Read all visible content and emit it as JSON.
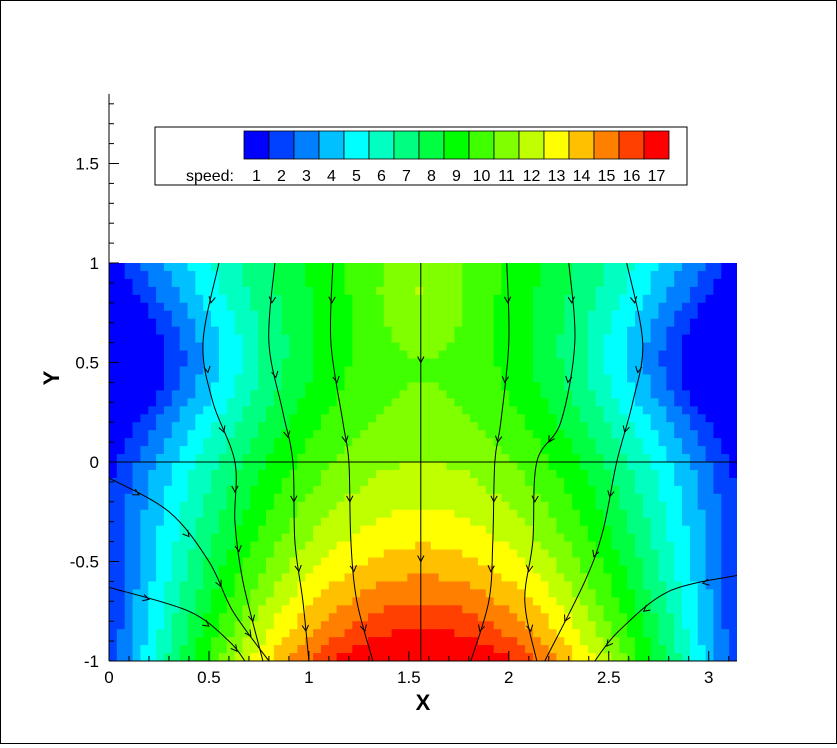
{
  "chart_data": {
    "type": "contour",
    "xlabel": "X",
    "ylabel": "Y",
    "xlim": [
      0,
      3.1416
    ],
    "ylim_plot": [
      -1,
      1
    ],
    "y_axis_extent": [
      -1,
      1.85
    ],
    "xticks": [
      {
        "value": 0,
        "label": "0"
      },
      {
        "value": 0.5,
        "label": "0.5"
      },
      {
        "value": 1,
        "label": "1"
      },
      {
        "value": 1.5,
        "label": "1.5"
      },
      {
        "value": 2,
        "label": "2"
      },
      {
        "value": 2.5,
        "label": "2.5"
      },
      {
        "value": 3,
        "label": "3"
      }
    ],
    "yticks": [
      {
        "value": -1,
        "label": "-1"
      },
      {
        "value": -0.5,
        "label": "-0.5"
      },
      {
        "value": 0,
        "label": "0"
      },
      {
        "value": 0.5,
        "label": "0.5"
      },
      {
        "value": 1,
        "label": "1"
      },
      {
        "value": 1.5,
        "label": "1.5"
      }
    ],
    "legend": {
      "title": "speed:",
      "placement": "top",
      "levels": [
        "1",
        "2",
        "3",
        "4",
        "5",
        "6",
        "7",
        "8",
        "9",
        "10",
        "11",
        "12",
        "13",
        "14",
        "15",
        "16",
        "17"
      ],
      "colors": [
        "#0000ff",
        "#0040ff",
        "#0080ff",
        "#00c0ff",
        "#00ffff",
        "#00ffc0",
        "#00ff80",
        "#00ff40",
        "#00ff00",
        "#40ff00",
        "#80ff00",
        "#c0ff00",
        "#ffff00",
        "#ffc000",
        "#ff8000",
        "#ff4000",
        "#ff0000"
      ]
    },
    "field_notes": "speed is low near x=0 and x=pi at y=0.5, maximum near bottom center (x≈1.57, y=-1)",
    "streamlines": [
      [
        [
          0.55,
          1
        ],
        [
          0.47,
          0.6
        ],
        [
          0.52,
          0.3
        ],
        [
          0.63,
          0
        ],
        [
          0.63,
          -0.3
        ],
        [
          0.67,
          -0.6
        ],
        [
          0.77,
          -1
        ]
      ],
      [
        [
          0.83,
          1
        ],
        [
          0.8,
          0.6
        ],
        [
          0.87,
          0.25
        ],
        [
          0.92,
          0
        ],
        [
          0.93,
          -0.4
        ],
        [
          0.97,
          -0.7
        ],
        [
          1.0,
          -1
        ]
      ],
      [
        [
          1.12,
          1
        ],
        [
          1.11,
          0.6
        ],
        [
          1.17,
          0.2
        ],
        [
          1.2,
          0
        ],
        [
          1.21,
          -0.4
        ],
        [
          1.24,
          -0.7
        ],
        [
          1.32,
          -1
        ]
      ],
      [
        [
          1.56,
          1
        ],
        [
          1.56,
          0
        ],
        [
          1.56,
          -1
        ]
      ],
      [
        [
          1.99,
          1
        ],
        [
          2.0,
          0.6
        ],
        [
          1.96,
          0.2
        ],
        [
          1.93,
          0
        ],
        [
          1.92,
          -0.4
        ],
        [
          1.9,
          -0.7
        ],
        [
          1.81,
          -1
        ]
      ],
      [
        [
          2.3,
          1
        ],
        [
          2.33,
          0.6
        ],
        [
          2.26,
          0.2
        ],
        [
          2.14,
          0
        ],
        [
          2.12,
          -0.4
        ],
        [
          2.08,
          -0.7
        ],
        [
          2.14,
          -1
        ]
      ],
      [
        [
          2.59,
          1
        ],
        [
          2.67,
          0.6
        ],
        [
          2.62,
          0.3
        ],
        [
          2.54,
          0
        ],
        [
          2.47,
          -0.35
        ],
        [
          2.38,
          -0.6
        ],
        [
          2.18,
          -1
        ]
      ],
      [
        [
          0,
          -0.08
        ],
        [
          0.3,
          -0.25
        ],
        [
          0.5,
          -0.5
        ],
        [
          0.62,
          -0.75
        ],
        [
          0.8,
          -1
        ]
      ],
      [
        [
          0,
          -0.63
        ],
        [
          0.4,
          -0.75
        ],
        [
          0.6,
          -0.9
        ],
        [
          0.68,
          -1
        ]
      ],
      [
        [
          3.1416,
          -0.57
        ],
        [
          2.8,
          -0.65
        ],
        [
          2.55,
          -0.85
        ],
        [
          2.43,
          -1
        ]
      ]
    ],
    "zero_line_y": 0
  }
}
